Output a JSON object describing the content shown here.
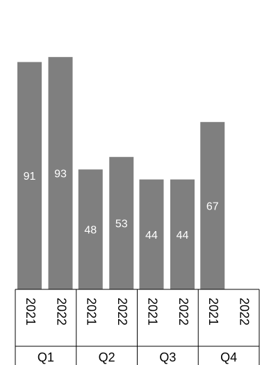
{
  "chart_data": {
    "type": "bar",
    "groups": [
      "Q1",
      "Q2",
      "Q3",
      "Q4"
    ],
    "subcategories": [
      "2021",
      "2022"
    ],
    "values": [
      [
        91,
        93
      ],
      [
        48,
        53
      ],
      [
        44,
        44
      ],
      [
        67,
        null
      ]
    ],
    "ylim": [
      0,
      100
    ],
    "grid": false,
    "legend": "none",
    "bar_color": "#7f7f7f",
    "label_color": "#ffffff"
  }
}
